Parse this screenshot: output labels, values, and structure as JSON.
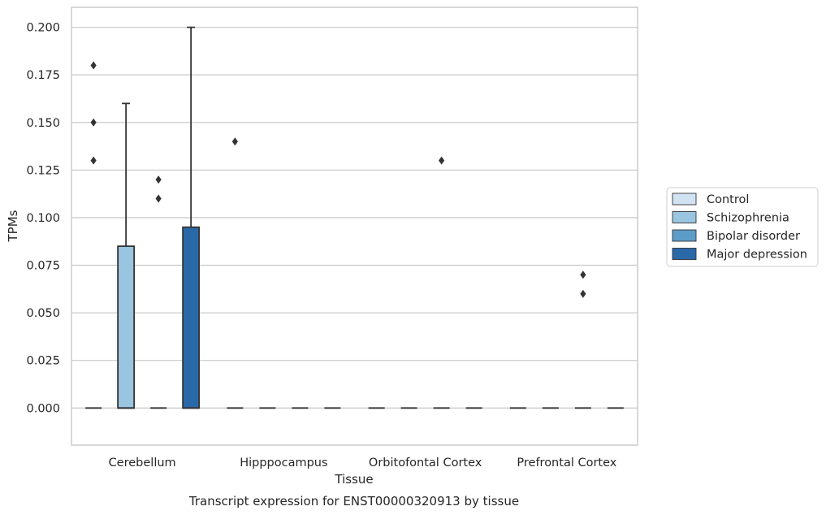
{
  "chart_data": {
    "type": "box",
    "title": "Transcript expression for ENST00000320913 by tissue",
    "xlabel": "Tissue",
    "ylabel": "TPMs",
    "ylim": [
      -0.0195,
      0.2105
    ],
    "yticks": [
      0.0,
      0.025,
      0.05,
      0.075,
      0.1,
      0.125,
      0.15,
      0.175,
      0.2
    ],
    "ytick_labels": [
      "0.000",
      "0.025",
      "0.050",
      "0.075",
      "0.100",
      "0.125",
      "0.150",
      "0.175",
      "0.200"
    ],
    "categories": [
      "Cerebellum",
      "Hipppocampus",
      "Orbitofontal Cortex",
      "Prefrontal Cortex"
    ],
    "grid": "horizontal",
    "legend_position": "right",
    "series": [
      {
        "name": "Control",
        "color": "#d1e2f2",
        "boxes": [
          {
            "q1": 0.0,
            "median": 0.0,
            "q3": 0.0,
            "whisker_low": 0.0,
            "whisker_high": 0.0,
            "outliers": [
              0.13,
              0.15,
              0.18
            ]
          },
          {
            "q1": 0.0,
            "median": 0.0,
            "q3": 0.0,
            "whisker_low": 0.0,
            "whisker_high": 0.0,
            "outliers": [
              0.14
            ]
          },
          {
            "q1": 0.0,
            "median": 0.0,
            "q3": 0.0,
            "whisker_low": 0.0,
            "whisker_high": 0.0,
            "outliers": []
          },
          {
            "q1": 0.0,
            "median": 0.0,
            "q3": 0.0,
            "whisker_low": 0.0,
            "whisker_high": 0.0,
            "outliers": []
          }
        ]
      },
      {
        "name": "Schizophrenia",
        "color": "#9ac5e0",
        "boxes": [
          {
            "q1": 0.0,
            "median": 0.0,
            "q3": 0.085,
            "whisker_low": 0.0,
            "whisker_high": 0.16,
            "outliers": []
          },
          {
            "q1": 0.0,
            "median": 0.0,
            "q3": 0.0,
            "whisker_low": 0.0,
            "whisker_high": 0.0,
            "outliers": []
          },
          {
            "q1": 0.0,
            "median": 0.0,
            "q3": 0.0,
            "whisker_low": 0.0,
            "whisker_high": 0.0,
            "outliers": []
          },
          {
            "q1": 0.0,
            "median": 0.0,
            "q3": 0.0,
            "whisker_low": 0.0,
            "whisker_high": 0.0,
            "outliers": []
          }
        ]
      },
      {
        "name": "Bipolar disorder",
        "color": "#5b9cc9",
        "boxes": [
          {
            "q1": 0.0,
            "median": 0.0,
            "q3": 0.0,
            "whisker_low": 0.0,
            "whisker_high": 0.0,
            "outliers": [
              0.11,
              0.12
            ]
          },
          {
            "q1": 0.0,
            "median": 0.0,
            "q3": 0.0,
            "whisker_low": 0.0,
            "whisker_high": 0.0,
            "outliers": []
          },
          {
            "q1": 0.0,
            "median": 0.0,
            "q3": 0.0,
            "whisker_low": 0.0,
            "whisker_high": 0.0,
            "outliers": [
              0.13
            ]
          },
          {
            "q1": 0.0,
            "median": 0.0,
            "q3": 0.0,
            "whisker_low": 0.0,
            "whisker_high": 0.0,
            "outliers": [
              0.06,
              0.07
            ]
          }
        ]
      },
      {
        "name": "Major depression",
        "color": "#2a69a8",
        "boxes": [
          {
            "q1": 0.0,
            "median": 0.0,
            "q3": 0.095,
            "whisker_low": 0.0,
            "whisker_high": 0.2,
            "outliers": []
          },
          {
            "q1": 0.0,
            "median": 0.0,
            "q3": 0.0,
            "whisker_low": 0.0,
            "whisker_high": 0.0,
            "outliers": []
          },
          {
            "q1": 0.0,
            "median": 0.0,
            "q3": 0.0,
            "whisker_low": 0.0,
            "whisker_high": 0.0,
            "outliers": []
          },
          {
            "q1": 0.0,
            "median": 0.0,
            "q3": 0.0,
            "whisker_low": 0.0,
            "whisker_high": 0.0,
            "outliers": []
          }
        ]
      }
    ]
  }
}
